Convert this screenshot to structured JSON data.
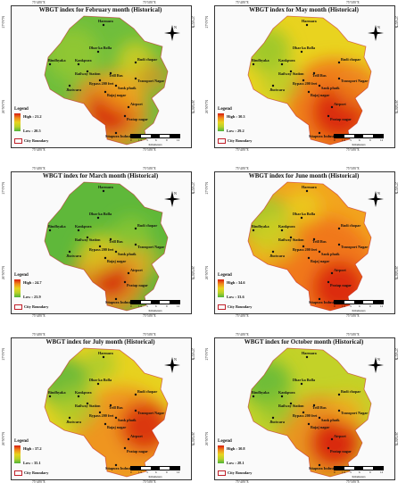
{
  "coordinates": {
    "lon_left": "75°40'0\"E",
    "lon_right": "75°50'0\"E",
    "lat_top": "27°0'0\"N",
    "lat_bottom": "26°50'0\"N"
  },
  "legend_title": "Legend",
  "city_boundary_label": "City Boundary",
  "north_label": "N",
  "scale": {
    "ticks": [
      "0",
      "1.5",
      "3",
      "6",
      "9",
      "12"
    ],
    "unit": "Kilometers"
  },
  "places": [
    "Harmara",
    "Dhar ka Bolla",
    "Bindhyaka",
    "Kankpura",
    "Budi chopar",
    "Railway Station",
    "Trill Bus",
    "Transport Nagar",
    "Bypass 200 feet",
    "Sank phatk",
    "Jhotwara",
    "Bajaj nagar",
    "Airport",
    "Pratap nagar",
    "Sitapura Industrial Area"
  ],
  "panels": [
    {
      "title": "WBGT index for February month (Historical)",
      "high": "High : 21.2",
      "low": "Low : 20.5",
      "scheme": "feb"
    },
    {
      "title": "WBGT index for May month (Historical)",
      "high": "High : 30.3",
      "low": "Low : 29.2",
      "scheme": "may"
    },
    {
      "title": "WBGT index for March month (Historical)",
      "high": "High : 24.7",
      "low": "Low : 23.9",
      "scheme": "mar"
    },
    {
      "title": "WBGT index for June month (Historical)",
      "high": "High : 34.6",
      "low": "Low : 33.6",
      "scheme": "jun"
    },
    {
      "title": "WBGT index for July month (Historical)",
      "high": "High : 37.2",
      "low": "Low : 35.1",
      "scheme": "jul"
    },
    {
      "title": "WBGT index for October month (Historical)",
      "high": "High : 30.8",
      "low": "Low : 28.1",
      "scheme": "oct"
    }
  ],
  "colors": {
    "high": "#d61a0d",
    "mid_high": "#f08a1c",
    "mid": "#e8d41f",
    "mid_low": "#b7d22a",
    "low": "#4fb23a",
    "boundary": "#c0202a"
  }
}
